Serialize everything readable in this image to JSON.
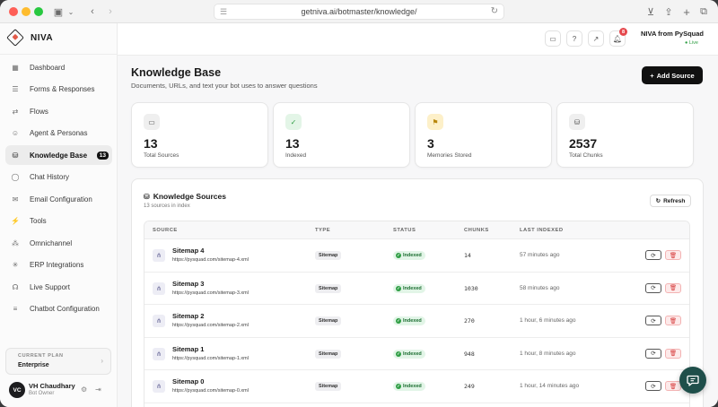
{
  "browser": {
    "url": "getniva.ai/botmaster/knowledge/"
  },
  "sidebar": {
    "brand": "NIVA",
    "items": [
      {
        "label": "Dashboard",
        "icon": "dashboard-icon",
        "glyph": "▦"
      },
      {
        "label": "Forms & Responses",
        "icon": "forms-icon",
        "glyph": "☰"
      },
      {
        "label": "Flows",
        "icon": "flows-icon",
        "glyph": "⇄"
      },
      {
        "label": "Agent & Personas",
        "icon": "agent-icon",
        "glyph": "☺"
      },
      {
        "label": "Knowledge Base",
        "icon": "database-icon",
        "glyph": "⛁",
        "active": true,
        "badge": "13"
      },
      {
        "label": "Chat History",
        "icon": "chat-icon",
        "glyph": "◯"
      },
      {
        "label": "Email Configuration",
        "icon": "mail-icon",
        "glyph": "✉"
      },
      {
        "label": "Tools",
        "icon": "tools-icon",
        "glyph": "⚡"
      },
      {
        "label": "Omnichannel",
        "icon": "omnichannel-icon",
        "glyph": "⁂"
      },
      {
        "label": "ERP Integrations",
        "icon": "erp-icon",
        "glyph": "✳"
      },
      {
        "label": "Live Support",
        "icon": "headset-icon",
        "glyph": "☊"
      },
      {
        "label": "Chatbot Configuration",
        "icon": "sliders-icon",
        "glyph": "≡"
      }
    ],
    "plan": {
      "label": "CURRENT PLAN",
      "value": "Enterprise"
    },
    "user": {
      "initials": "VC",
      "name": "VH Chaudhary",
      "role": "Bot Owner"
    }
  },
  "header": {
    "org": "NIVA from PySquad",
    "status": "● Live",
    "notification_count": "8"
  },
  "page": {
    "title": "Knowledge Base",
    "subtitle": "Documents, URLs, and text your bot uses to answer questions",
    "add_button": "Add Source",
    "add_button_prefix": "+"
  },
  "stats": [
    {
      "value": "13",
      "label": "Total Sources",
      "icon": "briefcase-icon",
      "glyph": "▭",
      "bg": "#efefef",
      "fg": "#555555"
    },
    {
      "value": "13",
      "label": "Indexed",
      "icon": "check-circle-icon",
      "glyph": "✓",
      "bg": "#e3f5e7",
      "fg": "#2f9e44"
    },
    {
      "value": "3",
      "label": "Memories Stored",
      "icon": "bookmark-icon",
      "glyph": "⚑",
      "bg": "#fdf0c9",
      "fg": "#b8860b"
    },
    {
      "value": "2537",
      "label": "Total Chunks",
      "icon": "database-icon",
      "glyph": "⛁",
      "bg": "#efefef",
      "fg": "#555555"
    }
  ],
  "sources_panel": {
    "title": "Knowledge Sources",
    "subtitle": "13 sources in index",
    "refresh": "Refresh",
    "columns": [
      "SOURCE",
      "TYPE",
      "STATUS",
      "CHUNKS",
      "LAST INDEXED"
    ],
    "rows": [
      {
        "name": "Sitemap 4",
        "url": "https://pysquad.com/sitemap-4.xml",
        "type": "Sitemap",
        "status": "Indexed",
        "chunks": "14",
        "last": "57 minutes ago"
      },
      {
        "name": "Sitemap 3",
        "url": "https://pysquad.com/sitemap-3.xml",
        "type": "Sitemap",
        "status": "Indexed",
        "chunks": "1030",
        "last": "58 minutes ago"
      },
      {
        "name": "Sitemap 2",
        "url": "https://pysquad.com/sitemap-2.xml",
        "type": "Sitemap",
        "status": "Indexed",
        "chunks": "270",
        "last": "1 hour, 6 minutes ago"
      },
      {
        "name": "Sitemap 1",
        "url": "https://pysquad.com/sitemap-1.xml",
        "type": "Sitemap",
        "status": "Indexed",
        "chunks": "948",
        "last": "1 hour, 8 minutes ago"
      },
      {
        "name": "Sitemap 0",
        "url": "https://pysquad.com/sitemap-0.xml",
        "type": "Sitemap",
        "status": "Indexed",
        "chunks": "249",
        "last": "1 hour, 14 minutes ago"
      }
    ]
  }
}
